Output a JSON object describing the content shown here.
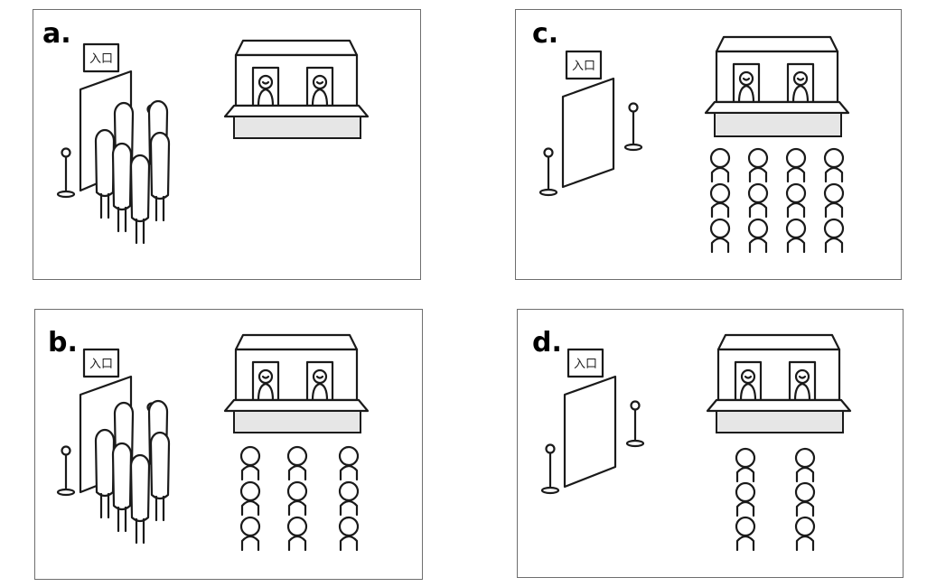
{
  "panels": [
    {
      "id": "a",
      "label": "a.",
      "sign_text": "入口",
      "crowd_at_entrance": true,
      "queue": {
        "columns": 0,
        "rows": 0
      }
    },
    {
      "id": "b",
      "label": "b.",
      "sign_text": "入口",
      "crowd_at_entrance": true,
      "queue": {
        "columns": 3,
        "rows": 3
      }
    },
    {
      "id": "c",
      "label": "c.",
      "sign_text": "入口",
      "crowd_at_entrance": false,
      "queue": {
        "columns": 4,
        "rows": 3
      }
    },
    {
      "id": "d",
      "label": "d.",
      "sign_text": "入口",
      "crowd_at_entrance": false,
      "queue": {
        "columns": 2,
        "rows": 3
      }
    }
  ]
}
